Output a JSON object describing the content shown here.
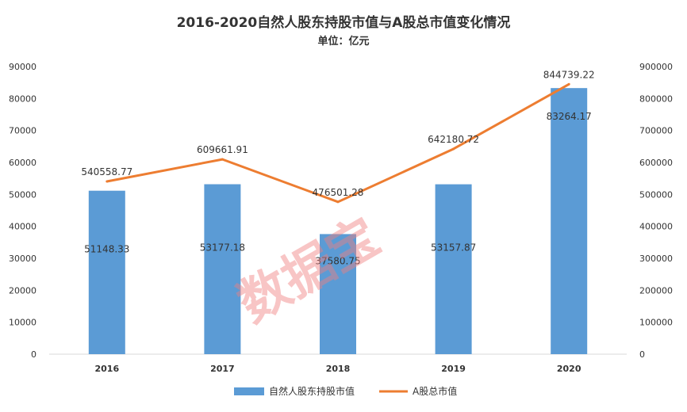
{
  "chart_data": {
    "type": "bar+line",
    "title": "2016-2020自然人股东持股市值与A股总市值变化情况",
    "subtitle": "单位：亿元",
    "categories": [
      "2016",
      "2017",
      "2018",
      "2019",
      "2020"
    ],
    "series": [
      {
        "name": "自然人股东持股市值",
        "type": "bar",
        "axis": "left",
        "color": "#5b9bd5",
        "values": [
          51148.33,
          53177.18,
          37580.75,
          53157.87,
          83264.17
        ],
        "labels": [
          "51148.33",
          "53177.18",
          "37580.75",
          "53157.87",
          "83264.17"
        ]
      },
      {
        "name": "A股总市值",
        "type": "line",
        "axis": "right",
        "color": "#ed7d31",
        "values": [
          540558.77,
          609661.91,
          476501.28,
          642180.72,
          844739.22
        ],
        "labels": [
          "540558.77",
          "609661.91",
          "476501.28",
          "642180.72",
          "844739.22"
        ]
      }
    ],
    "y_left": {
      "ylim": [
        0,
        90000
      ],
      "ticks": [
        "0",
        "10000",
        "20000",
        "30000",
        "40000",
        "50000",
        "60000",
        "70000",
        "80000",
        "90000"
      ]
    },
    "y_right": {
      "ylim": [
        0,
        900000
      ],
      "ticks": [
        "0",
        "100000",
        "200000",
        "300000",
        "400000",
        "500000",
        "600000",
        "700000",
        "800000",
        "900000"
      ]
    },
    "grid": false,
    "legend": "bottom",
    "watermark": "数据宝"
  }
}
